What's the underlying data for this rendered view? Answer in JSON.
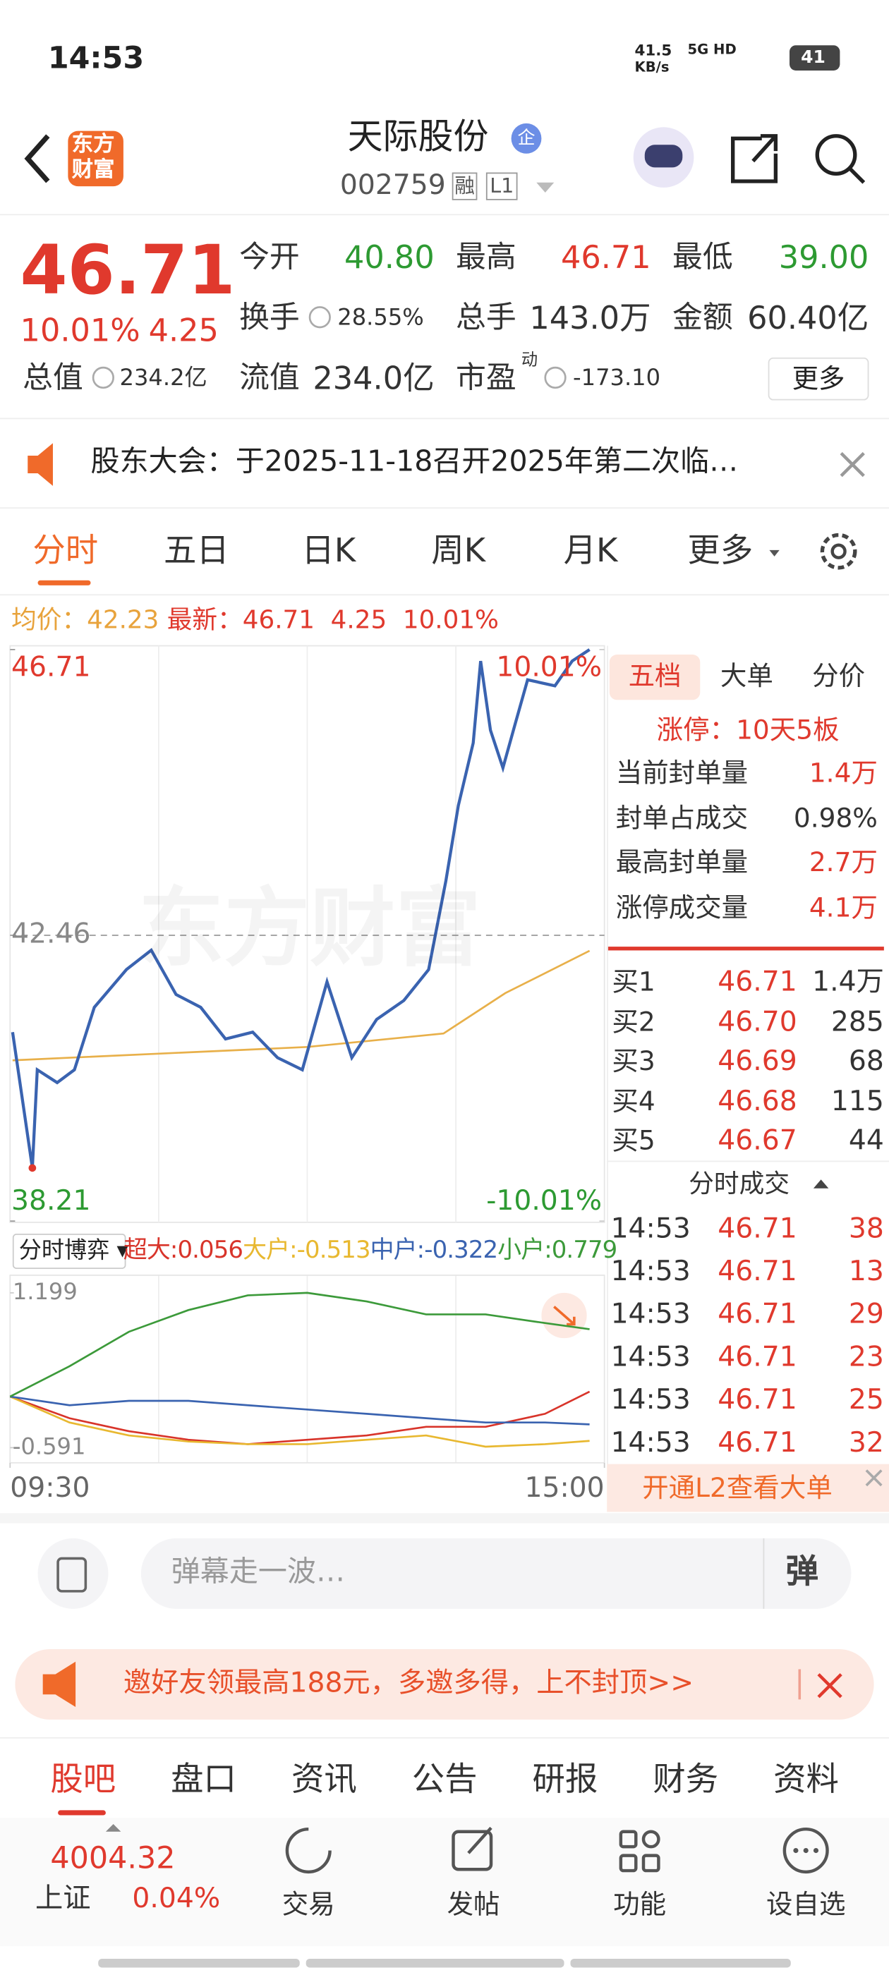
{
  "status_bar": {
    "time": "14:53",
    "speed": "41.5",
    "speed_unit": "KB/s",
    "network": "5G HD",
    "battery": "41"
  },
  "header": {
    "logo_top": "东方",
    "logo_bottom": "财富",
    "title": "天际股份",
    "badge": "企",
    "code": "002759",
    "tags": [
      "融",
      "L1"
    ]
  },
  "quote": {
    "price": "46.71",
    "change_pct": "10.01%",
    "change": "4.25",
    "fields": [
      {
        "label": "今开",
        "value": "40.80"
      },
      {
        "label": "最高",
        "value": "46.71"
      },
      {
        "label": "最低",
        "value": "39.00"
      },
      {
        "label": "换手",
        "value": "28.55%"
      },
      {
        "label": "总手",
        "value": "143.0万"
      },
      {
        "label": "金额",
        "value": "60.40亿"
      },
      {
        "label": "总值",
        "value": "234.2亿"
      },
      {
        "label": "流值",
        "value": "234.0亿"
      },
      {
        "label": "市盈",
        "sup": "动",
        "value": "-173.10"
      }
    ],
    "more": "更多"
  },
  "notice": "股东大会：于2025-11-18召开2025年第二次临…",
  "tabs": [
    "分时",
    "五日",
    "日K",
    "周K",
    "月K",
    "更多"
  ],
  "summary": {
    "avg_label": "均价：",
    "avg": "42.23",
    "last_label": "最新：",
    "last": "46.71",
    "change": "4.25",
    "change_pct": "10.01%"
  },
  "chart_data": [
    {
      "type": "line",
      "ylim": [
        38.21,
        46.71
      ],
      "yticks": [
        46.71,
        42.46,
        38.21
      ],
      "y2lim": [
        -10.01,
        10.01
      ],
      "y2ticks": [
        {
          "value": 10.01,
          "label": "10.01%"
        },
        {
          "value": -10.01,
          "label": "-10.01%"
        }
      ],
      "xlim": [
        0,
        240
      ],
      "xticks": [
        {
          "value": 0,
          "label": "09:30"
        },
        {
          "value": 240,
          "label": "15:00"
        }
      ],
      "watermark": "东方财富",
      "series": [
        {
          "color": "#3a63b0",
          "x": [
            1,
            9,
            11,
            19,
            26,
            34,
            47,
            57,
            67,
            77,
            87,
            98,
            108,
            118,
            128,
            138,
            148,
            159,
            169,
            176,
            181,
            187,
            190,
            194,
            199,
            204,
            209,
            220,
            227,
            234
          ],
          "values": [
            41.02,
            39.0,
            40.46,
            40.27,
            40.46,
            41.39,
            41.95,
            42.24,
            41.58,
            41.39,
            40.92,
            41.02,
            40.64,
            40.46,
            41.77,
            40.64,
            41.21,
            41.49,
            41.95,
            43.27,
            44.39,
            45.32,
            46.54,
            45.51,
            44.95,
            45.61,
            46.26,
            46.17,
            46.54,
            46.71
          ]
        },
        {
          "color": "#e8b04a",
          "x": [
            1,
            60,
            120,
            175,
            200,
            234
          ],
          "values": [
            40.6,
            40.7,
            40.8,
            41.0,
            41.6,
            42.23
          ]
        }
      ]
    },
    {
      "type": "line",
      "title": "分时博弈",
      "ylim": [
        -0.591,
        1.199
      ],
      "yticks": [
        1.199,
        -0.591
      ],
      "series": [
        {
          "name": "超大:",
          "color": "#d8342a",
          "x": [
            0,
            24,
            48,
            72,
            96,
            120,
            144,
            168,
            192,
            216,
            234
          ],
          "values": [
            0,
            -0.25,
            -0.4,
            -0.5,
            -0.55,
            -0.5,
            -0.45,
            -0.35,
            -0.35,
            -0.2,
            0.056
          ]
        },
        {
          "name": "大户:",
          "color": "#e8b830",
          "x": [
            0,
            24,
            48,
            72,
            96,
            120,
            144,
            168,
            192,
            216,
            234
          ],
          "values": [
            0,
            -0.3,
            -0.45,
            -0.52,
            -0.55,
            -0.55,
            -0.5,
            -0.45,
            -0.58,
            -0.55,
            -0.513
          ]
        },
        {
          "name": "中户:",
          "color": "#3a63b0",
          "x": [
            0,
            24,
            48,
            72,
            96,
            120,
            144,
            168,
            192,
            216,
            234
          ],
          "values": [
            0,
            -0.1,
            -0.05,
            -0.05,
            -0.1,
            -0.15,
            -0.2,
            -0.25,
            -0.3,
            -0.3,
            -0.322
          ]
        },
        {
          "name": "小户:",
          "color": "#3c9a3a",
          "x": [
            0,
            24,
            48,
            72,
            96,
            120,
            144,
            168,
            192,
            216,
            234
          ],
          "values": [
            0,
            0.35,
            0.75,
            1.0,
            1.17,
            1.199,
            1.1,
            0.95,
            0.95,
            0.85,
            0.779
          ]
        }
      ]
    }
  ],
  "order_book": {
    "tabs": [
      "五档",
      "大单",
      "分价"
    ],
    "limit": "涨停：10天5板",
    "stats": [
      {
        "label": "当前封单量",
        "value": "1.4万"
      },
      {
        "label": "封单占成交",
        "value": "0.98%"
      },
      {
        "label": "最高封单量",
        "value": "2.7万"
      },
      {
        "label": "涨停成交量",
        "value": "4.1万"
      }
    ],
    "bids": [
      {
        "label": "买1",
        "price": "46.71",
        "volume": "1.4万"
      },
      {
        "label": "买2",
        "price": "46.70",
        "volume": "285"
      },
      {
        "label": "买3",
        "price": "46.69",
        "volume": "68"
      },
      {
        "label": "买4",
        "price": "46.68",
        "volume": "115"
      },
      {
        "label": "买5",
        "price": "46.67",
        "volume": "44"
      }
    ],
    "trades_title": "分时成交",
    "trades": [
      {
        "time": "14:53",
        "price": "46.71",
        "volume": "38"
      },
      {
        "time": "14:53",
        "price": "46.71",
        "volume": "13"
      },
      {
        "time": "14:53",
        "price": "46.71",
        "volume": "29"
      },
      {
        "time": "14:53",
        "price": "46.71",
        "volume": "23"
      },
      {
        "time": "14:53",
        "price": "46.71",
        "volume": "25"
      },
      {
        "time": "14:53",
        "price": "46.71",
        "volume": "32"
      }
    ],
    "l2": "开通L2查看大单"
  },
  "danmaku": {
    "placeholder": "弹幕走一波…",
    "button": "弹"
  },
  "banner": "邀好友领最高188元，多邀多得，上不封顶>>",
  "section_tabs": [
    "股吧",
    "盘口",
    "资讯",
    "公告",
    "研报",
    "财务",
    "资料"
  ],
  "bottom_nav": {
    "index_value": "4004.32",
    "index_name": "上证",
    "index_change": "0.04%",
    "items": [
      "交易",
      "发帖",
      "功能",
      "设自选"
    ]
  }
}
